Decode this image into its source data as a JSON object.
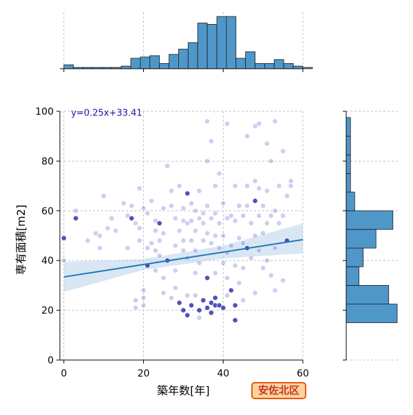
{
  "chart_data": {
    "type": "scatter",
    "xlabel": "築年数[年]",
    "ylabel": "専有面積[m2]",
    "xlim": [
      -1,
      60
    ],
    "ylim": [
      0,
      100
    ],
    "x_ticks": [
      "0",
      "20",
      "40",
      "60"
    ],
    "y_ticks": [
      "0",
      "20",
      "40",
      "60",
      "80",
      "100"
    ],
    "grid": true,
    "regression": {
      "label": "y=0.25x+33.41",
      "slope": 0.25,
      "intercept": 33.41
    },
    "points": [
      [
        0,
        49
      ],
      [
        0,
        40
      ],
      [
        3,
        60
      ],
      [
        3,
        57
      ],
      [
        6,
        48
      ],
      [
        8,
        51
      ],
      [
        9,
        50
      ],
      [
        9,
        45
      ],
      [
        10,
        66
      ],
      [
        11,
        53
      ],
      [
        12,
        57
      ],
      [
        13,
        52
      ],
      [
        15,
        63
      ],
      [
        16,
        58
      ],
      [
        16,
        45
      ],
      [
        17,
        57
      ],
      [
        17,
        62
      ],
      [
        18,
        55
      ],
      [
        18,
        24
      ],
      [
        18,
        21
      ],
      [
        19,
        69
      ],
      [
        19,
        53
      ],
      [
        19,
        48
      ],
      [
        20,
        25
      ],
      [
        20,
        28
      ],
      [
        20,
        22
      ],
      [
        20,
        61
      ],
      [
        21,
        59
      ],
      [
        21,
        45
      ],
      [
        21,
        38
      ],
      [
        22,
        64
      ],
      [
        22,
        47
      ],
      [
        23,
        56
      ],
      [
        23,
        52
      ],
      [
        23,
        44
      ],
      [
        23,
        36
      ],
      [
        24,
        55
      ],
      [
        24,
        48
      ],
      [
        24,
        42
      ],
      [
        25,
        61
      ],
      [
        25,
        51
      ],
      [
        25,
        33
      ],
      [
        25,
        27
      ],
      [
        26,
        78
      ],
      [
        26,
        40
      ],
      [
        27,
        68
      ],
      [
        27,
        62
      ],
      [
        27,
        25
      ],
      [
        28,
        57
      ],
      [
        28,
        46
      ],
      [
        28,
        36
      ],
      [
        28,
        29
      ],
      [
        29,
        70
      ],
      [
        29,
        52
      ],
      [
        29,
        23
      ],
      [
        30,
        61
      ],
      [
        30,
        56
      ],
      [
        30,
        48
      ],
      [
        30,
        44
      ],
      [
        30,
        20
      ],
      [
        31,
        67
      ],
      [
        31,
        55
      ],
      [
        31,
        41
      ],
      [
        31,
        26
      ],
      [
        31,
        18
      ],
      [
        32,
        63
      ],
      [
        32,
        56
      ],
      [
        32,
        48
      ],
      [
        32,
        22
      ],
      [
        33,
        60
      ],
      [
        33,
        52
      ],
      [
        33,
        44
      ],
      [
        33,
        35
      ],
      [
        33,
        26
      ],
      [
        34,
        68
      ],
      [
        34,
        57
      ],
      [
        34,
        39
      ],
      [
        34,
        20
      ],
      [
        34,
        17
      ],
      [
        35,
        59
      ],
      [
        35,
        55
      ],
      [
        35,
        48
      ],
      [
        35,
        24
      ],
      [
        36,
        96
      ],
      [
        36,
        80
      ],
      [
        36,
        62
      ],
      [
        36,
        51
      ],
      [
        36,
        33
      ],
      [
        36,
        21
      ],
      [
        37,
        88
      ],
      [
        37,
        57
      ],
      [
        37,
        47
      ],
      [
        37,
        23
      ],
      [
        37,
        19
      ],
      [
        38,
        70
      ],
      [
        38,
        59
      ],
      [
        38,
        50
      ],
      [
        38,
        35
      ],
      [
        38,
        25
      ],
      [
        38,
        22
      ],
      [
        39,
        75
      ],
      [
        39,
        55
      ],
      [
        39,
        45
      ],
      [
        39,
        22
      ],
      [
        40,
        63
      ],
      [
        40,
        50
      ],
      [
        40,
        39
      ],
      [
        40,
        21
      ],
      [
        41,
        95
      ],
      [
        41,
        57
      ],
      [
        41,
        43
      ],
      [
        41,
        33
      ],
      [
        41,
        26
      ],
      [
        42,
        58
      ],
      [
        42,
        46
      ],
      [
        42,
        28
      ],
      [
        43,
        70
      ],
      [
        43,
        56
      ],
      [
        43,
        38
      ],
      [
        43,
        22
      ],
      [
        43,
        16
      ],
      [
        44,
        62
      ],
      [
        44,
        49
      ],
      [
        44,
        31
      ],
      [
        45,
        58
      ],
      [
        45,
        47
      ],
      [
        45,
        37
      ],
      [
        45,
        24
      ],
      [
        46,
        90
      ],
      [
        46,
        70
      ],
      [
        46,
        62
      ],
      [
        46,
        45
      ],
      [
        47,
        55
      ],
      [
        47,
        41
      ],
      [
        48,
        94
      ],
      [
        48,
        72
      ],
      [
        48,
        64
      ],
      [
        48,
        50
      ],
      [
        48,
        27
      ],
      [
        49,
        95
      ],
      [
        49,
        69
      ],
      [
        49,
        58
      ],
      [
        49,
        44
      ],
      [
        50,
        62
      ],
      [
        50,
        51
      ],
      [
        50,
        37
      ],
      [
        51,
        87
      ],
      [
        51,
        68
      ],
      [
        51,
        55
      ],
      [
        51,
        40
      ],
      [
        52,
        80
      ],
      [
        52,
        58
      ],
      [
        52,
        34
      ],
      [
        53,
        96
      ],
      [
        53,
        60
      ],
      [
        53,
        45
      ],
      [
        53,
        28
      ],
      [
        54,
        70
      ],
      [
        54,
        55
      ],
      [
        55,
        84
      ],
      [
        55,
        58
      ],
      [
        55,
        32
      ],
      [
        56,
        66
      ],
      [
        56,
        48
      ],
      [
        57,
        72
      ],
      [
        57,
        70
      ]
    ],
    "dark_points": [
      [
        0,
        49
      ],
      [
        3,
        57
      ],
      [
        17,
        57
      ],
      [
        21,
        38
      ],
      [
        24,
        55
      ],
      [
        26,
        40
      ],
      [
        29,
        23
      ],
      [
        30,
        20
      ],
      [
        31,
        67
      ],
      [
        31,
        18
      ],
      [
        32,
        22
      ],
      [
        33,
        21
      ],
      [
        34,
        20
      ],
      [
        35,
        24
      ],
      [
        36,
        21
      ],
      [
        36,
        33
      ],
      [
        37,
        23
      ],
      [
        37,
        19
      ],
      [
        38,
        22
      ],
      [
        38,
        25
      ],
      [
        39,
        22
      ],
      [
        40,
        21
      ],
      [
        42,
        28
      ],
      [
        43,
        22
      ],
      [
        43,
        16
      ],
      [
        46,
        45
      ],
      [
        48,
        64
      ],
      [
        56,
        48
      ]
    ],
    "top_histogram": {
      "bin_width": 2.4,
      "counts": [
        3,
        1,
        1,
        1,
        1,
        1,
        2,
        8,
        9,
        10,
        4,
        11,
        15,
        20,
        35,
        34,
        40,
        40,
        8,
        13,
        4,
        4,
        7,
        4,
        2,
        1
      ]
    },
    "right_histogram": {
      "bin_width": 7.5,
      "counts": [
        12,
        10,
        3,
        4,
        7,
        11,
        2,
        1,
        1,
        1,
        1
      ]
    },
    "colors": {
      "point": "#4a4fcf",
      "point_dark": "#2426a8",
      "regression_line": "#1f77b4",
      "regression_band": "#b9d1ea",
      "histogram": "#5097c9",
      "annotation_text": "#1a1aa6"
    }
  },
  "badge": {
    "label": "安佐北区"
  }
}
